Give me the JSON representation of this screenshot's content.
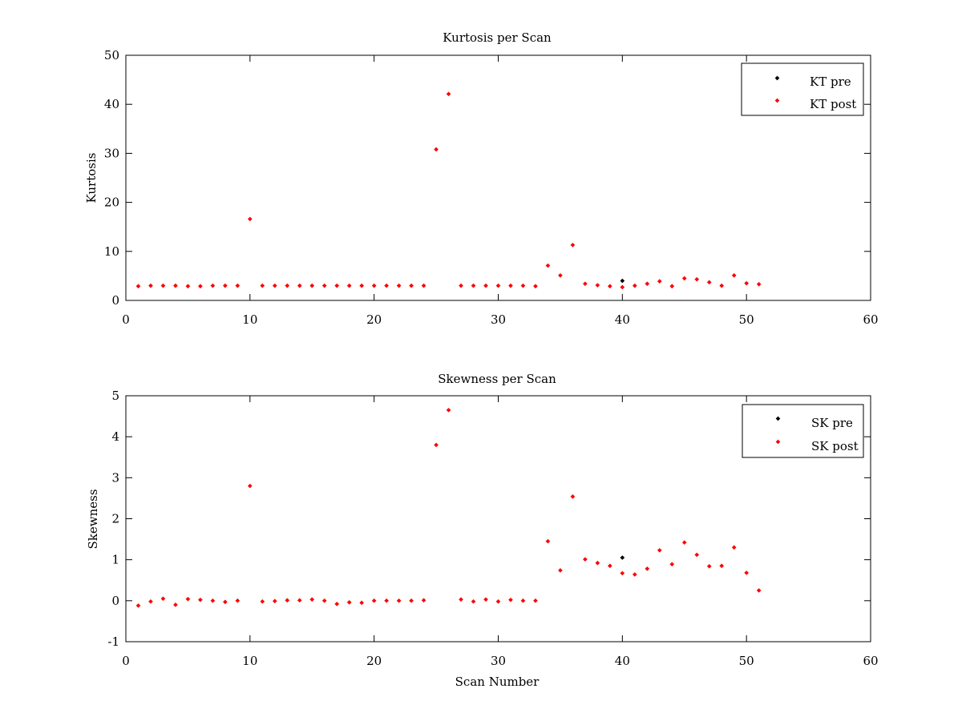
{
  "chart_data": [
    {
      "type": "scatter",
      "title": "Kurtosis per Scan",
      "xlabel": "",
      "ylabel": "Kurtosis",
      "xlim": [
        0,
        60
      ],
      "ylim": [
        0,
        50
      ],
      "xticks": [
        0,
        10,
        20,
        30,
        40,
        50,
        60
      ],
      "yticks": [
        0,
        10,
        20,
        30,
        40,
        50
      ],
      "grid": false,
      "legend": {
        "position": "top-right"
      },
      "series": [
        {
          "name": "KT pre",
          "color": "#000000",
          "x": [
            40
          ],
          "y": [
            4.0
          ]
        },
        {
          "name": "KT post",
          "color": "#ff0000",
          "x": [
            1,
            2,
            3,
            4,
            5,
            6,
            7,
            8,
            9,
            10,
            11,
            12,
            13,
            14,
            15,
            16,
            17,
            18,
            19,
            20,
            21,
            22,
            23,
            24,
            25,
            26,
            27,
            28,
            29,
            30,
            31,
            32,
            33,
            34,
            35,
            36,
            37,
            38,
            39,
            40,
            41,
            42,
            43,
            44,
            45,
            46,
            47,
            48,
            49,
            50,
            51
          ],
          "y": [
            2.9,
            3.0,
            3.0,
            3.0,
            2.9,
            2.9,
            3.0,
            3.0,
            3.0,
            16.6,
            3.0,
            3.0,
            3.0,
            3.0,
            3.0,
            3.0,
            3.0,
            3.0,
            3.0,
            3.0,
            3.0,
            3.0,
            3.0,
            3.0,
            30.8,
            42.1,
            3.0,
            3.0,
            3.0,
            3.0,
            3.0,
            3.0,
            2.9,
            7.1,
            5.1,
            11.3,
            3.4,
            3.1,
            2.9,
            2.7,
            3.0,
            3.4,
            3.9,
            2.9,
            4.5,
            4.3,
            3.7,
            3.0,
            5.1,
            3.5,
            3.3
          ]
        }
      ]
    },
    {
      "type": "scatter",
      "title": "Skewness per Scan",
      "xlabel": "Scan Number",
      "ylabel": "Skewness",
      "xlim": [
        0,
        60
      ],
      "ylim": [
        -1,
        5
      ],
      "xticks": [
        0,
        10,
        20,
        30,
        40,
        50,
        60
      ],
      "yticks": [
        -1,
        0,
        1,
        2,
        3,
        4,
        5
      ],
      "grid": false,
      "legend": {
        "position": "top-right"
      },
      "series": [
        {
          "name": "SK pre",
          "color": "#000000",
          "x": [
            40
          ],
          "y": [
            1.05
          ]
        },
        {
          "name": "SK post",
          "color": "#ff0000",
          "x": [
            1,
            2,
            3,
            4,
            5,
            6,
            7,
            8,
            9,
            10,
            11,
            12,
            13,
            14,
            15,
            16,
            17,
            18,
            19,
            20,
            21,
            22,
            23,
            24,
            25,
            26,
            27,
            28,
            29,
            30,
            31,
            32,
            33,
            34,
            35,
            36,
            37,
            38,
            39,
            40,
            41,
            42,
            43,
            44,
            45,
            46,
            47,
            48,
            49,
            50,
            51
          ],
          "y": [
            -0.12,
            -0.02,
            0.05,
            -0.1,
            0.04,
            0.02,
            0.0,
            -0.03,
            0.0,
            2.8,
            -0.02,
            -0.01,
            0.01,
            0.01,
            0.03,
            0.0,
            -0.08,
            -0.04,
            -0.05,
            0.0,
            0.0,
            0.0,
            0.0,
            0.01,
            3.8,
            4.65,
            0.03,
            -0.02,
            0.03,
            -0.02,
            0.02,
            0.0,
            0.0,
            1.45,
            0.74,
            2.54,
            1.01,
            0.92,
            0.85,
            0.67,
            0.64,
            0.78,
            1.23,
            0.89,
            1.42,
            1.12,
            0.84,
            0.85,
            1.3,
            0.68,
            0.25
          ]
        }
      ]
    }
  ]
}
